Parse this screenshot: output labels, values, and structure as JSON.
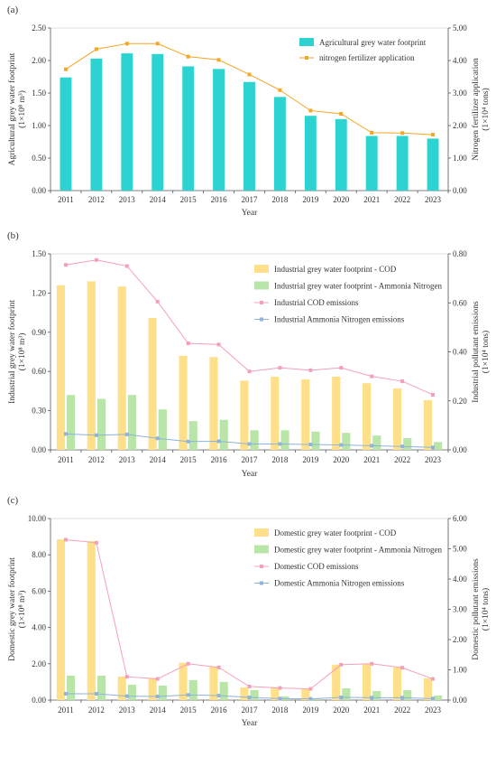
{
  "chart_data": [
    {
      "type": "bar",
      "panel_label": "(a)",
      "categories": [
        "2011",
        "2012",
        "2013",
        "2014",
        "2015",
        "2016",
        "2017",
        "2018",
        "2019",
        "2020",
        "2021",
        "2022",
        "2023"
      ],
      "xlabel": "Year",
      "ylabel": [
        "Agricultural grey water footprint",
        "(1×10⁸ m³)"
      ],
      "y2label": [
        "Nitrogen fertilizer application",
        "(1×10⁴ tons)"
      ],
      "ylim": [
        0,
        2.5
      ],
      "y2lim": [
        0,
        5
      ],
      "yticks": [
        "0.00",
        "0.50",
        "1.00",
        "1.50",
        "2.00",
        "2.50"
      ],
      "y2ticks": [
        "0.00",
        "1.00",
        "2.00",
        "3.00",
        "4.00",
        "5.00"
      ],
      "legend_position": "top-right",
      "series": [
        {
          "name": "Agricultural grey water footprint",
          "kind": "bar",
          "axis": "left",
          "color": "#2cd3d0",
          "values": [
            1.74,
            2.03,
            2.11,
            2.1,
            1.91,
            1.87,
            1.67,
            1.44,
            1.15,
            1.1,
            0.84,
            0.84,
            0.8
          ]
        },
        {
          "name": "nitrogen fertilizer application",
          "kind": "line",
          "axis": "right",
          "color": "#f5a623",
          "marker": "square",
          "values": [
            3.73,
            4.35,
            4.52,
            4.52,
            4.12,
            4.02,
            3.57,
            3.09,
            2.46,
            2.36,
            1.78,
            1.77,
            1.72
          ]
        }
      ]
    },
    {
      "type": "bar",
      "panel_label": "(b)",
      "categories": [
        "2011",
        "2012",
        "2013",
        "2014",
        "2015",
        "2016",
        "2017",
        "2018",
        "2019",
        "2020",
        "2021",
        "2022",
        "2023"
      ],
      "xlabel": "Year",
      "ylabel": [
        "Industrial grey water footprint",
        "(1×10⁸ m³)"
      ],
      "y2label": [
        "Industrial pollutant emissions",
        "(1×10⁴ tons)"
      ],
      "ylim": [
        0,
        1.5
      ],
      "y2lim": [
        0,
        0.8
      ],
      "yticks": [
        "0.00",
        "0.30",
        "0.60",
        "0.90",
        "1.20",
        "1.50"
      ],
      "y2ticks": [
        "0.00",
        "0.20",
        "0.40",
        "0.60",
        "0.80"
      ],
      "legend_position": "top-right",
      "series": [
        {
          "name": "Industrial grey water footprint - COD",
          "kind": "bar",
          "axis": "left",
          "color": "#ffe08a",
          "values": [
            1.26,
            1.29,
            1.25,
            1.01,
            0.72,
            0.71,
            0.53,
            0.56,
            0.54,
            0.56,
            0.51,
            0.47,
            0.38
          ]
        },
        {
          "name": "Industrial grey water footprint - Ammonia Nitrogen",
          "kind": "bar",
          "axis": "left",
          "color": "#b9e6a8",
          "values": [
            0.42,
            0.39,
            0.42,
            0.31,
            0.22,
            0.23,
            0.15,
            0.15,
            0.14,
            0.13,
            0.11,
            0.09,
            0.06
          ]
        },
        {
          "name": "Industrial COD emissions",
          "kind": "line",
          "axis": "right",
          "color": "#f4a0b8",
          "marker": "square",
          "values": [
            0.755,
            0.775,
            0.75,
            0.605,
            0.435,
            0.43,
            0.32,
            0.335,
            0.325,
            0.335,
            0.3,
            0.28,
            0.225
          ]
        },
        {
          "name": "Industrial Ammonia Nitrogen emissions",
          "kind": "line",
          "axis": "right",
          "color": "#8fb3d9",
          "marker": "square",
          "values": [
            0.065,
            0.06,
            0.063,
            0.047,
            0.034,
            0.035,
            0.024,
            0.024,
            0.022,
            0.02,
            0.017,
            0.014,
            0.01
          ]
        }
      ]
    },
    {
      "type": "bar",
      "panel_label": "(c)",
      "categories": [
        "2011",
        "2012",
        "2013",
        "2014",
        "2015",
        "2016",
        "2017",
        "2018",
        "2019",
        "2020",
        "2021",
        "2022",
        "2023"
      ],
      "xlabel": "Year",
      "ylabel": [
        "Domestic grey water footprint",
        "(1×10⁸ m³)"
      ],
      "y2label": [
        "Domestic pollutant emissions",
        "(1×10⁴ tons)"
      ],
      "ylim": [
        0,
        10
      ],
      "y2lim": [
        0,
        6
      ],
      "yticks": [
        "0.00",
        "2.00",
        "4.00",
        "6.00",
        "8.00",
        "10.00"
      ],
      "y2ticks": [
        "0.00",
        "1.00",
        "2.00",
        "3.00",
        "4.00",
        "5.00",
        "6.00"
      ],
      "legend_position": "top-right",
      "series": [
        {
          "name": "Domestic grey water footprint - COD",
          "kind": "bar",
          "axis": "left",
          "color": "#ffe08a",
          "values": [
            8.85,
            8.75,
            1.3,
            1.2,
            2.05,
            1.85,
            0.7,
            0.7,
            0.6,
            1.95,
            2.0,
            1.8,
            1.2
          ]
        },
        {
          "name": "Domestic grey water footprint - Ammonia Nitrogen",
          "kind": "bar",
          "axis": "left",
          "color": "#b9e6a8",
          "values": [
            1.35,
            1.35,
            0.85,
            0.8,
            1.1,
            1.0,
            0.55,
            0.2,
            0.1,
            0.65,
            0.5,
            0.55,
            0.25
          ]
        },
        {
          "name": "Domestic COD emissions",
          "kind": "line",
          "axis": "right",
          "color": "#f4a0b8",
          "marker": "square",
          "values": [
            5.3,
            5.2,
            0.77,
            0.7,
            1.2,
            1.08,
            0.45,
            0.4,
            0.37,
            1.17,
            1.2,
            1.07,
            0.7
          ]
        },
        {
          "name": "Domestic Ammonia Nitrogen emissions",
          "kind": "line",
          "axis": "right",
          "color": "#8fb3d9",
          "marker": "square",
          "values": [
            0.21,
            0.21,
            0.13,
            0.12,
            0.17,
            0.15,
            0.09,
            0.05,
            0.04,
            0.09,
            0.08,
            0.08,
            0.05
          ]
        }
      ]
    }
  ]
}
